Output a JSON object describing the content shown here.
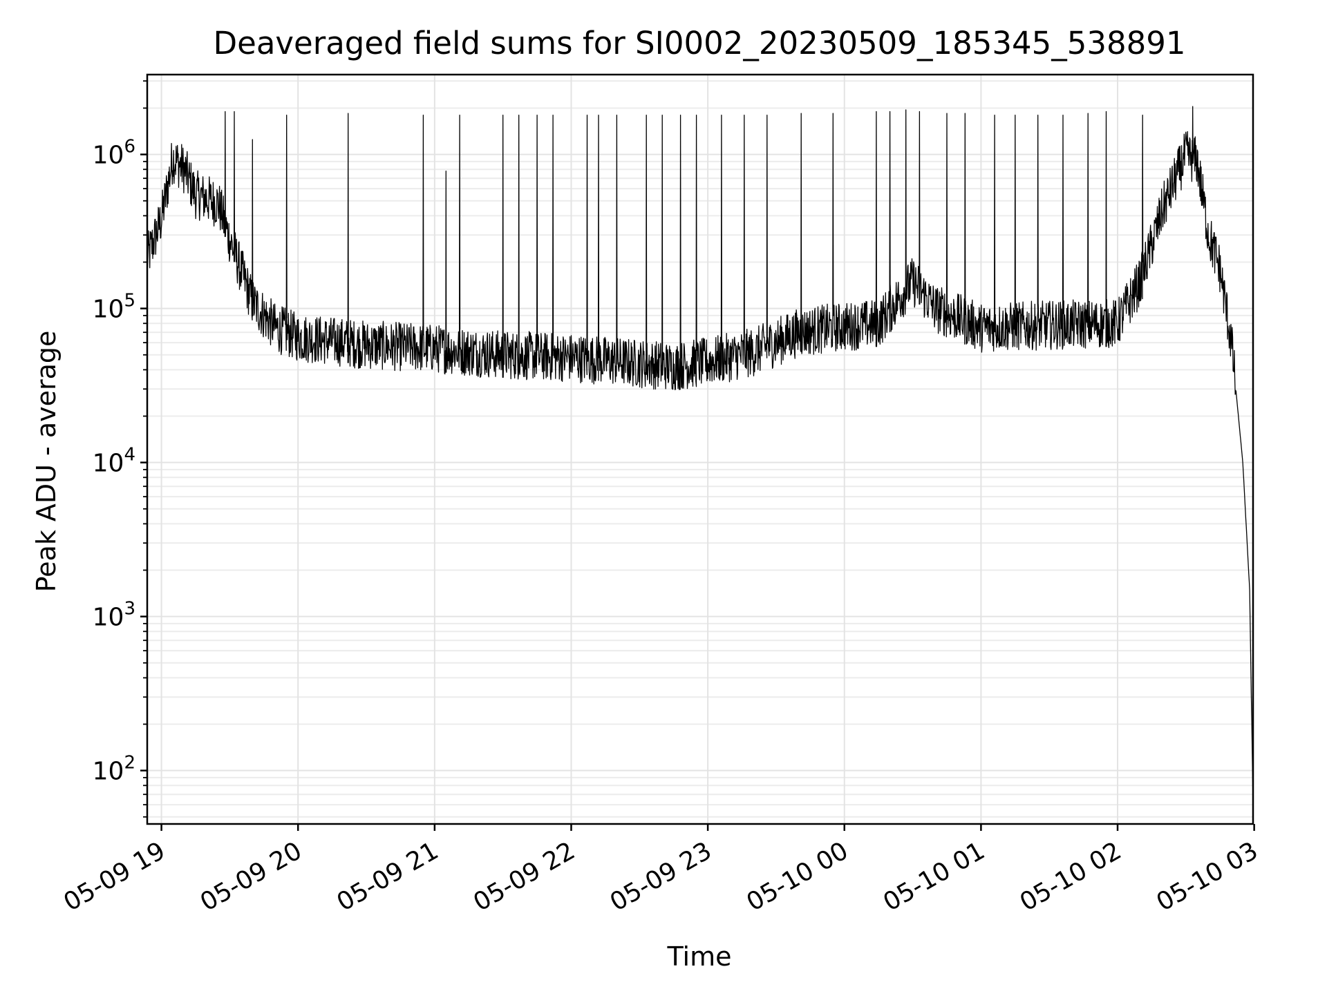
{
  "chart_data": {
    "type": "line",
    "title": "Deaveraged field sums for SI0002_20230509_185345_538891",
    "xlabel": "Time",
    "ylabel": "Peak ADU - average",
    "yscale": "log",
    "grid": true,
    "grid_which": "both",
    "line_color": "#000000",
    "xlim": [
      "2023-05-09 18:53:45",
      "2023-05-10 02:59:30"
    ],
    "ylim": [
      45,
      3300000
    ],
    "x_ticks": [
      {
        "value": "2023-05-09 19:00",
        "label": "05-09 19"
      },
      {
        "value": "2023-05-09 20:00",
        "label": "05-09 20"
      },
      {
        "value": "2023-05-09 21:00",
        "label": "05-09 21"
      },
      {
        "value": "2023-05-09 22:00",
        "label": "05-09 22"
      },
      {
        "value": "2023-05-09 23:00",
        "label": "05-09 23"
      },
      {
        "value": "2023-05-10 00:00",
        "label": "05-10 00"
      },
      {
        "value": "2023-05-10 01:00",
        "label": "05-10 01"
      },
      {
        "value": "2023-05-10 02:00",
        "label": "05-10 02"
      },
      {
        "value": "2023-05-10 03:00",
        "label": "05-10 03"
      }
    ],
    "y_ticks": [
      {
        "value": 100,
        "base": "10",
        "exp": "2"
      },
      {
        "value": 1000,
        "base": "10",
        "exp": "3"
      },
      {
        "value": 10000,
        "base": "10",
        "exp": "4"
      },
      {
        "value": 100000,
        "base": "10",
        "exp": "5"
      },
      {
        "value": 1000000,
        "base": "10",
        "exp": "6"
      }
    ],
    "baseline": [
      {
        "x": "2023-05-09 18:53:45",
        "y": 210000
      },
      {
        "x": "2023-05-09 19:00",
        "y": 380000
      },
      {
        "x": "2023-05-09 19:05",
        "y": 950000
      },
      {
        "x": "2023-05-09 19:10",
        "y": 800000
      },
      {
        "x": "2023-05-09 19:15",
        "y": 550000
      },
      {
        "x": "2023-05-09 19:25",
        "y": 480000
      },
      {
        "x": "2023-05-09 19:30",
        "y": 280000
      },
      {
        "x": "2023-05-09 19:40",
        "y": 110000
      },
      {
        "x": "2023-05-09 19:50",
        "y": 75000
      },
      {
        "x": "2023-05-09 20:00",
        "y": 65000
      },
      {
        "x": "2023-05-09 20:30",
        "y": 58000
      },
      {
        "x": "2023-05-09 21:00",
        "y": 55000
      },
      {
        "x": "2023-05-09 21:30",
        "y": 50000
      },
      {
        "x": "2023-05-09 22:00",
        "y": 48000
      },
      {
        "x": "2023-05-09 22:30",
        "y": 44000
      },
      {
        "x": "2023-05-09 22:45",
        "y": 42000
      },
      {
        "x": "2023-05-09 23:00",
        "y": 45000
      },
      {
        "x": "2023-05-09 23:20",
        "y": 52000
      },
      {
        "x": "2023-05-09 23:40",
        "y": 70000
      },
      {
        "x": "2023-05-09 23:55",
        "y": 75000
      },
      {
        "x": "2023-05-10 00:15",
        "y": 80000
      },
      {
        "x": "2023-05-10 00:30",
        "y": 150000
      },
      {
        "x": "2023-05-10 00:40",
        "y": 100000
      },
      {
        "x": "2023-05-10 01:00",
        "y": 75000
      },
      {
        "x": "2023-05-10 01:30",
        "y": 78000
      },
      {
        "x": "2023-05-10 02:00",
        "y": 80000
      },
      {
        "x": "2023-05-10 02:10",
        "y": 150000
      },
      {
        "x": "2023-05-10 02:20",
        "y": 450000
      },
      {
        "x": "2023-05-10 02:30",
        "y": 1000000
      },
      {
        "x": "2023-05-10 02:35",
        "y": 900000
      },
      {
        "x": "2023-05-10 02:40",
        "y": 300000
      },
      {
        "x": "2023-05-10 02:45",
        "y": 180000
      },
      {
        "x": "2023-05-10 02:50",
        "y": 60000
      },
      {
        "x": "2023-05-10 02:55",
        "y": 10000
      },
      {
        "x": "2023-05-10 02:58",
        "y": 1500
      },
      {
        "x": "2023-05-10 02:59:30",
        "y": 60
      }
    ],
    "spikes": [
      {
        "x": "2023-05-09 19:28",
        "y": 1900000
      },
      {
        "x": "2023-05-09 19:32",
        "y": 1900000
      },
      {
        "x": "2023-05-09 19:40",
        "y": 1250000
      },
      {
        "x": "2023-05-09 19:55",
        "y": 1800000
      },
      {
        "x": "2023-05-09 20:22",
        "y": 1850000
      },
      {
        "x": "2023-05-09 20:55",
        "y": 1800000
      },
      {
        "x": "2023-05-09 21:05",
        "y": 780000
      },
      {
        "x": "2023-05-09 21:11",
        "y": 1800000
      },
      {
        "x": "2023-05-09 21:30",
        "y": 1800000
      },
      {
        "x": "2023-05-09 21:37",
        "y": 1800000
      },
      {
        "x": "2023-05-09 21:45",
        "y": 1800000
      },
      {
        "x": "2023-05-09 21:52",
        "y": 1800000
      },
      {
        "x": "2023-05-09 22:07",
        "y": 1800000
      },
      {
        "x": "2023-05-09 22:12",
        "y": 1800000
      },
      {
        "x": "2023-05-09 22:20",
        "y": 1800000
      },
      {
        "x": "2023-05-09 22:33",
        "y": 1800000
      },
      {
        "x": "2023-05-09 22:40",
        "y": 1800000
      },
      {
        "x": "2023-05-09 22:48",
        "y": 1800000
      },
      {
        "x": "2023-05-09 22:55",
        "y": 1800000
      },
      {
        "x": "2023-05-09 23:06",
        "y": 1800000
      },
      {
        "x": "2023-05-09 23:16",
        "y": 1800000
      },
      {
        "x": "2023-05-09 23:26",
        "y": 1800000
      },
      {
        "x": "2023-05-09 23:41",
        "y": 1850000
      },
      {
        "x": "2023-05-09 23:55",
        "y": 1850000
      },
      {
        "x": "2023-05-10 00:14",
        "y": 1900000
      },
      {
        "x": "2023-05-10 00:20",
        "y": 1900000
      },
      {
        "x": "2023-05-10 00:27",
        "y": 1950000
      },
      {
        "x": "2023-05-10 00:33",
        "y": 1900000
      },
      {
        "x": "2023-05-10 00:45",
        "y": 1850000
      },
      {
        "x": "2023-05-10 00:53",
        "y": 1850000
      },
      {
        "x": "2023-05-10 01:06",
        "y": 1800000
      },
      {
        "x": "2023-05-10 01:15",
        "y": 1800000
      },
      {
        "x": "2023-05-10 01:25",
        "y": 1800000
      },
      {
        "x": "2023-05-10 01:36",
        "y": 1800000
      },
      {
        "x": "2023-05-10 01:47",
        "y": 1850000
      },
      {
        "x": "2023-05-10 01:55",
        "y": 1900000
      },
      {
        "x": "2023-05-10 02:11",
        "y": 1800000
      },
      {
        "x": "2023-05-10 02:33",
        "y": 2050000
      }
    ]
  }
}
